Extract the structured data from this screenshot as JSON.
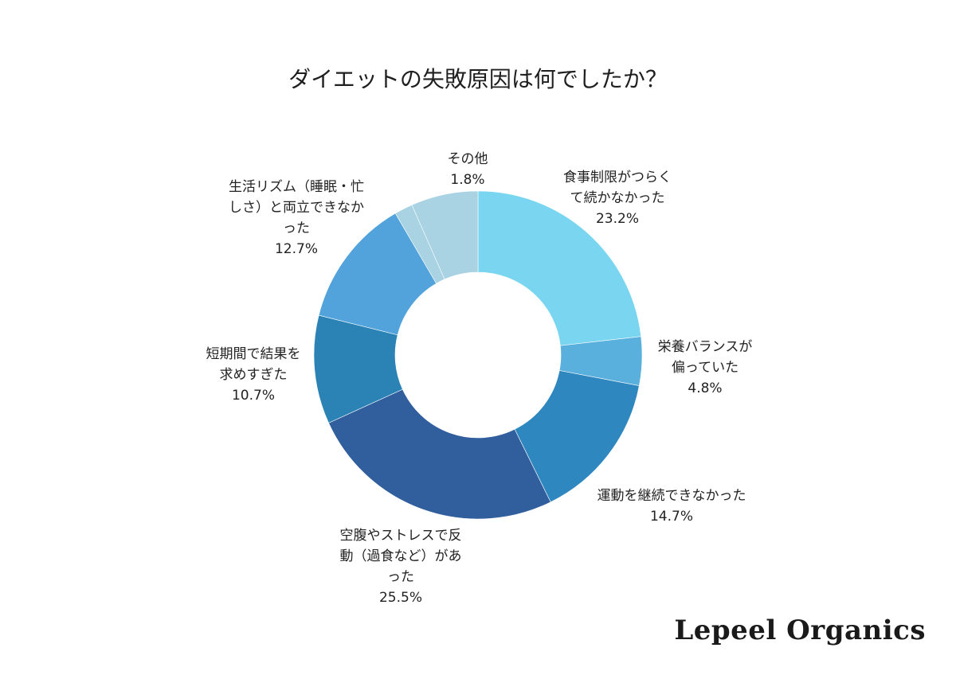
{
  "chart_data": {
    "type": "pie",
    "donut": true,
    "title": "ダイエットの失敗原因は何でしたか？",
    "legend": "none",
    "slices": [
      {
        "label": "食事制限がつらくて続かなかった",
        "label_lines": [
          "食事制限がつらく",
          "て続かなかった"
        ],
        "value": 23.2,
        "value_text": "23.2%",
        "color": "#7ad6f0"
      },
      {
        "label": "栄養バランスが偏っていた",
        "label_lines": [
          "栄養バランスが",
          "偏っていた"
        ],
        "value": 4.8,
        "value_text": "4.8%",
        "color": "#5ab0dd"
      },
      {
        "label": "運動を継続できなかった",
        "label_lines": [
          "運動を継続できなかった"
        ],
        "value": 14.7,
        "value_text": "14.7%",
        "color": "#2f87bf"
      },
      {
        "label": "空腹やストレスで反動（過食など）があった",
        "label_lines": [
          "空腹やストレスで反",
          "動（過食など）があ",
          "った"
        ],
        "value": 25.5,
        "value_text": "25.5%",
        "color": "#315e9d"
      },
      {
        "label": "短期間で結果を求めすぎた",
        "label_lines": [
          "短期間で結果を",
          "求めすぎた"
        ],
        "value": 10.7,
        "value_text": "10.7%",
        "color": "#2b83b5"
      },
      {
        "label": "生活リズム（睡眠・忙しさ）と両立できなかった",
        "label_lines": [
          "生活リズム（睡眠・忙",
          "しさ）と両立できなか",
          "った"
        ],
        "value": 12.7,
        "value_text": "12.7%",
        "color": "#52a3db"
      },
      {
        "label": "その他",
        "label_lines": [
          "その他"
        ],
        "value": 1.8,
        "value_text": "1.8%",
        "color": "#a9d3e3"
      },
      {
        "label": "",
        "label_lines": [],
        "value": 6.6,
        "value_text": "",
        "color": "#a9d3e3"
      }
    ]
  },
  "brand": {
    "name": "Lepeel Organics"
  }
}
